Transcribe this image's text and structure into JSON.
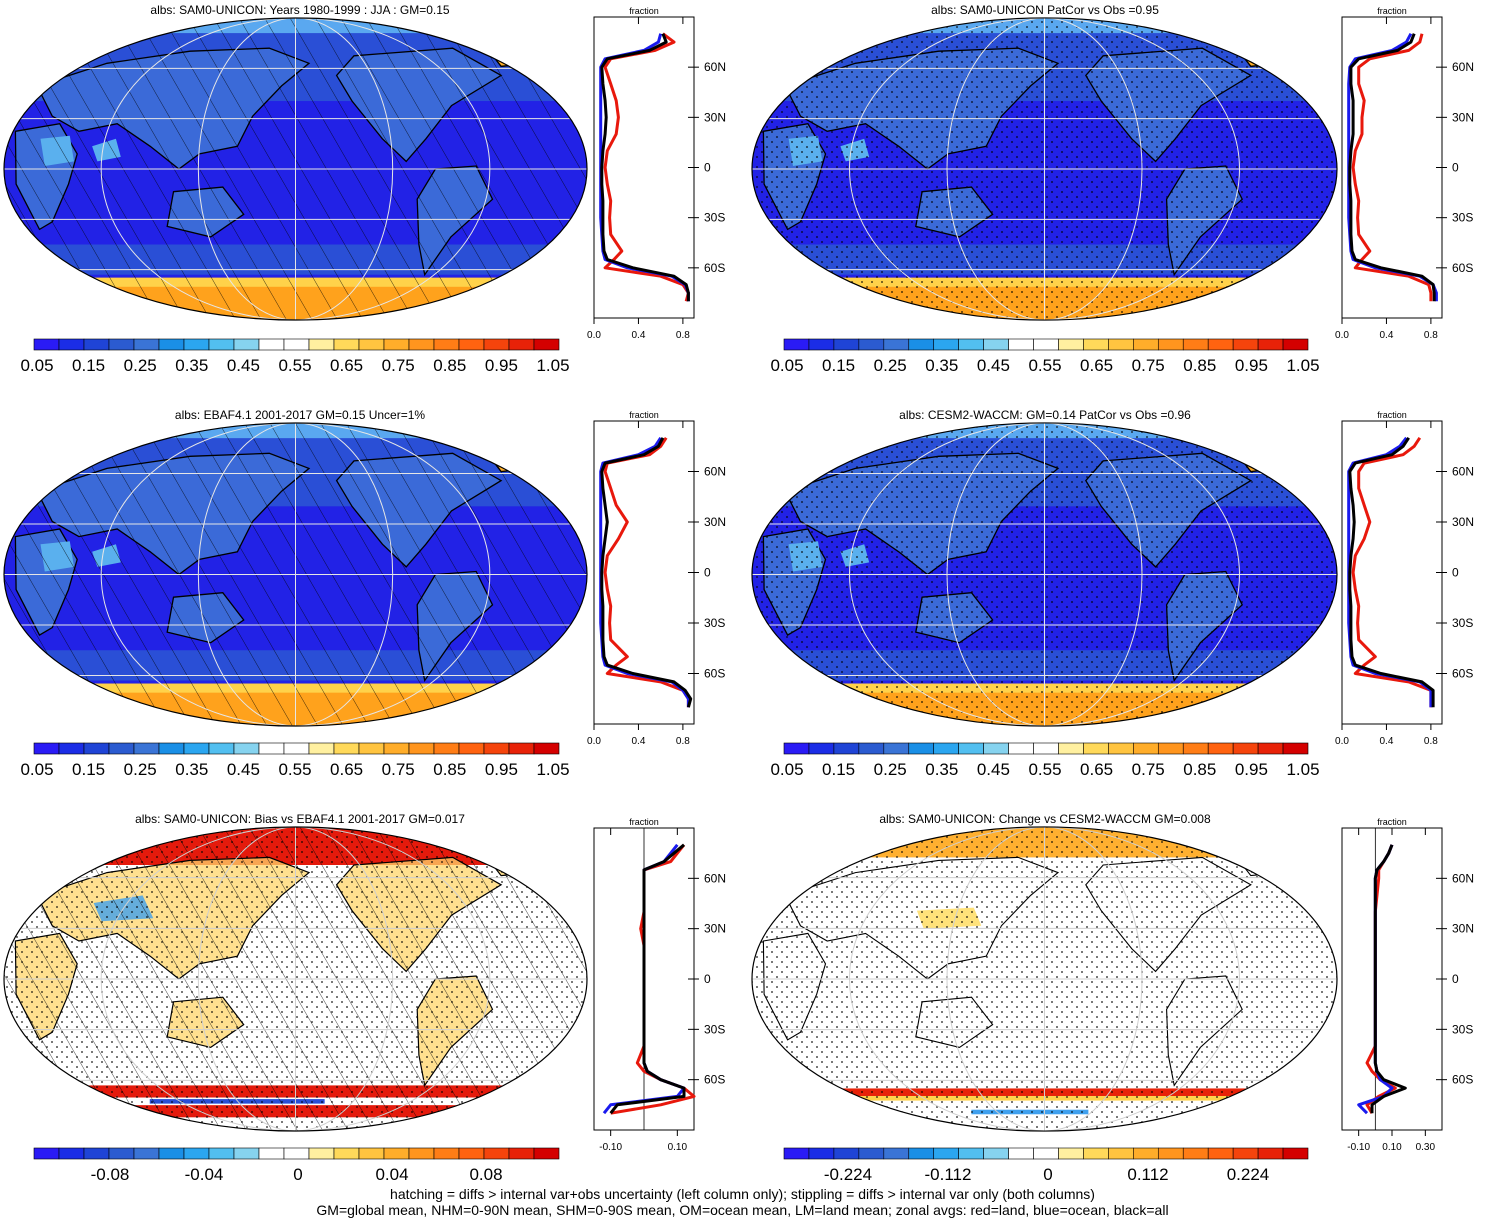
{
  "panels": [
    {
      "title": "albs: SAM0-UNICON: Years 1980-1999 : JJA : GM=0.15",
      "kind": "mean",
      "hatch": true,
      "stipple": false
    },
    {
      "title": "albs: SAM0-UNICON PatCor vs Obs =0.95",
      "kind": "mean",
      "hatch": false,
      "stipple": true
    },
    {
      "title": "albs: EBAF4.1 2001-2017 GM=0.15 Uncer=1%",
      "kind": "mean",
      "hatch": true,
      "stipple": false
    },
    {
      "title": "albs: CESM2-WACCM: GM=0.14 PatCor vs Obs =0.96",
      "kind": "mean",
      "hatch": false,
      "stipple": true
    },
    {
      "title": "albs: SAM0-UNICON: Bias vs EBAF4.1 2001-2017 GM=0.017",
      "kind": "bias",
      "hatch": true,
      "stipple": true
    },
    {
      "title": "albs: SAM0-UNICON: Change vs CESM2-WACCM GM=0.008",
      "kind": "change",
      "hatch": false,
      "stipple": true
    }
  ],
  "colorbars": {
    "mean_labels": [
      "0.05",
      "0.15",
      "0.25",
      "0.35",
      "0.45",
      "0.55",
      "0.65",
      "0.75",
      "0.85",
      "0.95",
      "1.05"
    ],
    "bias_labels": [
      "-0.08",
      "-0.04",
      "0",
      "0.04",
      "0.08"
    ],
    "change_labels": [
      "-0.224",
      "-0.112",
      "0",
      "0.112",
      "0.224"
    ],
    "mean_colors": [
      "#2a1bf5",
      "#1b2de6",
      "#1f44d6",
      "#2b5bd0",
      "#3a74d6",
      "#1a8fe6",
      "#2ba6f0",
      "#52bff0",
      "#86d3ef",
      "#ffffff",
      "#ffffff",
      "#fff0a0",
      "#ffd95a",
      "#ffc440",
      "#ffad2a",
      "#ff951e",
      "#ff7d16",
      "#ff6310",
      "#f5440c",
      "#e82208",
      "#d40000"
    ],
    "diff_colors": [
      "#2a1bf5",
      "#1b2de6",
      "#1f44d6",
      "#2b5bd0",
      "#3a74d6",
      "#1a8fe6",
      "#2ba6f0",
      "#52bff0",
      "#86d3ef",
      "#ffffff",
      "#ffffff",
      "#fff0a0",
      "#ffd95a",
      "#ffc440",
      "#ffad2a",
      "#ff951e",
      "#ff7d16",
      "#ff6310",
      "#f5440c",
      "#e82208",
      "#d40000"
    ]
  },
  "zonal_axis": {
    "label": "fraction",
    "lat_labels": [
      "60N",
      "30N",
      "0",
      "30S",
      "60S"
    ],
    "mean_ticks": [
      "0.0",
      "0.4",
      "0.8"
    ],
    "bias_ticks": [
      "-0.10",
      "0.10"
    ],
    "change_ticks": [
      "-0.10",
      "0.10",
      "0.30"
    ]
  },
  "colors": {
    "land": "#e8180c",
    "ocean": "#1a1aee",
    "all": "#000000",
    "grid": "#e0e0e0"
  },
  "chart_data": [
    {
      "type": "line",
      "title": "albs: SAM0-UNICON: Years 1980-1999 : JJA : GM=0.15",
      "xlabel": "fraction",
      "xlim": [
        0,
        0.9
      ],
      "ylim": [
        -90,
        90
      ],
      "lat": [
        80,
        75,
        70,
        65,
        60,
        50,
        40,
        30,
        20,
        10,
        0,
        -10,
        -20,
        -30,
        -40,
        -50,
        -55,
        -60,
        -65,
        -70,
        -75,
        -80
      ],
      "series": [
        {
          "name": "red=land",
          "values": [
            0.62,
            0.72,
            0.55,
            0.15,
            0.1,
            0.15,
            0.2,
            0.22,
            0.2,
            0.12,
            0.1,
            0.12,
            0.15,
            0.14,
            0.15,
            0.25,
            0.18,
            0.1,
            0.6,
            0.8,
            0.85,
            0.83
          ]
        },
        {
          "name": "blue=ocean",
          "values": [
            0.6,
            0.58,
            0.45,
            0.1,
            0.06,
            0.06,
            0.06,
            0.06,
            0.06,
            0.06,
            0.06,
            0.06,
            0.06,
            0.06,
            0.07,
            0.08,
            0.1,
            0.3,
            0.7,
            0.82,
            0.85,
            0.85
          ]
        },
        {
          "name": "black=all",
          "values": [
            0.62,
            0.65,
            0.5,
            0.12,
            0.07,
            0.08,
            0.1,
            0.11,
            0.1,
            0.08,
            0.07,
            0.07,
            0.08,
            0.08,
            0.08,
            0.09,
            0.12,
            0.35,
            0.72,
            0.83,
            0.85,
            0.85
          ]
        }
      ]
    },
    {
      "type": "line",
      "title": "albs: SAM0-UNICON PatCor vs Obs =0.95",
      "xlabel": "fraction",
      "xlim": [
        0,
        0.9
      ],
      "ylim": [
        -90,
        90
      ],
      "lat": [
        80,
        75,
        70,
        65,
        60,
        50,
        40,
        30,
        20,
        10,
        0,
        -10,
        -20,
        -30,
        -40,
        -50,
        -55,
        -60,
        -65,
        -70,
        -75,
        -80
      ],
      "series": [
        {
          "name": "red=land",
          "values": [
            0.72,
            0.7,
            0.6,
            0.25,
            0.15,
            0.15,
            0.2,
            0.18,
            0.18,
            0.12,
            0.1,
            0.12,
            0.15,
            0.14,
            0.15,
            0.25,
            0.18,
            0.12,
            0.6,
            0.78,
            0.8,
            0.8
          ]
        },
        {
          "name": "blue=ocean",
          "values": [
            0.62,
            0.58,
            0.45,
            0.12,
            0.07,
            0.06,
            0.06,
            0.06,
            0.06,
            0.06,
            0.06,
            0.06,
            0.06,
            0.06,
            0.07,
            0.08,
            0.1,
            0.3,
            0.7,
            0.82,
            0.85,
            0.85
          ]
        },
        {
          "name": "black=all",
          "values": [
            0.65,
            0.62,
            0.5,
            0.15,
            0.08,
            0.08,
            0.1,
            0.1,
            0.1,
            0.08,
            0.07,
            0.07,
            0.08,
            0.08,
            0.08,
            0.09,
            0.12,
            0.35,
            0.72,
            0.82,
            0.83,
            0.83
          ]
        }
      ]
    },
    {
      "type": "line",
      "title": "albs: EBAF4.1 2001-2017 GM=0.15 Uncer=1%",
      "xlabel": "fraction",
      "xlim": [
        0,
        0.9
      ],
      "ylim": [
        -90,
        90
      ],
      "lat": [
        80,
        75,
        70,
        65,
        60,
        50,
        40,
        30,
        20,
        10,
        0,
        -10,
        -20,
        -30,
        -40,
        -50,
        -55,
        -60,
        -65,
        -70,
        -75,
        -80
      ],
      "series": [
        {
          "name": "red=land",
          "values": [
            0.65,
            0.6,
            0.5,
            0.12,
            0.1,
            0.15,
            0.2,
            0.3,
            0.22,
            0.12,
            0.1,
            0.12,
            0.15,
            0.14,
            0.15,
            0.3,
            0.2,
            0.12,
            0.6,
            0.8,
            0.85,
            0.85
          ]
        },
        {
          "name": "blue=ocean",
          "values": [
            0.6,
            0.55,
            0.4,
            0.08,
            0.06,
            0.06,
            0.06,
            0.06,
            0.06,
            0.06,
            0.06,
            0.06,
            0.06,
            0.06,
            0.07,
            0.08,
            0.1,
            0.3,
            0.7,
            0.8,
            0.85,
            0.85
          ]
        },
        {
          "name": "black=all",
          "values": [
            0.62,
            0.58,
            0.45,
            0.1,
            0.07,
            0.08,
            0.1,
            0.12,
            0.1,
            0.08,
            0.07,
            0.07,
            0.08,
            0.08,
            0.08,
            0.09,
            0.12,
            0.35,
            0.72,
            0.82,
            0.87,
            0.85
          ]
        }
      ]
    },
    {
      "type": "line",
      "title": "albs: CESM2-WACCM: GM=0.14 PatCor vs Obs =0.96",
      "xlabel": "fraction",
      "xlim": [
        0,
        0.9
      ],
      "ylim": [
        -90,
        90
      ],
      "lat": [
        80,
        75,
        70,
        65,
        60,
        50,
        40,
        30,
        20,
        10,
        0,
        -10,
        -20,
        -30,
        -40,
        -50,
        -55,
        -60,
        -65,
        -70,
        -75,
        -80
      ],
      "series": [
        {
          "name": "red=land",
          "values": [
            0.7,
            0.65,
            0.55,
            0.2,
            0.15,
            0.15,
            0.2,
            0.25,
            0.2,
            0.12,
            0.1,
            0.12,
            0.15,
            0.14,
            0.15,
            0.3,
            0.2,
            0.12,
            0.6,
            0.8,
            0.8,
            0.8
          ]
        },
        {
          "name": "blue=ocean",
          "values": [
            0.58,
            0.52,
            0.4,
            0.1,
            0.06,
            0.06,
            0.06,
            0.06,
            0.06,
            0.06,
            0.06,
            0.06,
            0.06,
            0.06,
            0.07,
            0.08,
            0.1,
            0.3,
            0.7,
            0.8,
            0.8,
            0.8
          ]
        },
        {
          "name": "black=all",
          "values": [
            0.6,
            0.55,
            0.45,
            0.12,
            0.07,
            0.08,
            0.1,
            0.11,
            0.1,
            0.08,
            0.07,
            0.07,
            0.08,
            0.08,
            0.08,
            0.09,
            0.12,
            0.35,
            0.72,
            0.82,
            0.82,
            0.82
          ]
        }
      ]
    },
    {
      "type": "line",
      "title": "albs: SAM0-UNICON: Bias vs EBAF4.1 2001-2017 GM=0.017",
      "xlabel": "fraction",
      "xlim": [
        -0.15,
        0.15
      ],
      "ylim": [
        -90,
        90
      ],
      "lat": [
        80,
        75,
        70,
        65,
        60,
        50,
        40,
        30,
        20,
        10,
        0,
        -10,
        -20,
        -30,
        -40,
        -50,
        -55,
        -60,
        -65,
        -70,
        -75,
        -80
      ],
      "series": [
        {
          "name": "red=land",
          "values": [
            0.12,
            0.1,
            0.08,
            0.0,
            0.0,
            0.0,
            0.0,
            -0.01,
            0.0,
            0.0,
            0.0,
            0.0,
            0.0,
            0.0,
            0.0,
            -0.02,
            0.0,
            0.05,
            0.12,
            0.15,
            0.05,
            -0.1
          ]
        },
        {
          "name": "blue=ocean",
          "values": [
            0.1,
            0.08,
            0.06,
            0.0,
            0.0,
            0.0,
            0.0,
            0.0,
            0.0,
            0.0,
            0.0,
            0.0,
            0.0,
            0.0,
            0.0,
            0.0,
            0.01,
            0.05,
            0.12,
            0.1,
            -0.1,
            -0.12
          ]
        },
        {
          "name": "black=all",
          "values": [
            0.12,
            0.09,
            0.06,
            0.0,
            0.0,
            0.0,
            0.0,
            0.0,
            0.0,
            0.0,
            0.0,
            0.0,
            0.0,
            0.0,
            0.0,
            0.0,
            0.01,
            0.05,
            0.12,
            0.12,
            -0.08,
            -0.1
          ]
        }
      ]
    },
    {
      "type": "line",
      "title": "albs: SAM0-UNICON: Change vs CESM2-WACCM GM=0.008",
      "xlabel": "fraction",
      "xlim": [
        -0.2,
        0.4
      ],
      "ylim": [
        -90,
        90
      ],
      "lat": [
        80,
        75,
        70,
        65,
        60,
        50,
        40,
        30,
        20,
        10,
        0,
        -10,
        -20,
        -30,
        -40,
        -50,
        -55,
        -60,
        -65,
        -70,
        -75,
        -80
      ],
      "series": [
        {
          "name": "red=land",
          "values": [
            0.1,
            0.08,
            0.05,
            0.02,
            0.02,
            0.01,
            0.0,
            0.0,
            0.0,
            0.0,
            0.0,
            0.0,
            0.0,
            0.0,
            0.0,
            -0.05,
            -0.02,
            0.03,
            0.12,
            0.02,
            -0.05,
            -0.02
          ]
        },
        {
          "name": "blue=ocean",
          "values": [
            0.1,
            0.08,
            0.05,
            0.01,
            0.0,
            0.0,
            0.0,
            0.0,
            0.0,
            0.0,
            0.0,
            0.0,
            0.0,
            0.0,
            0.0,
            0.0,
            0.01,
            0.03,
            0.1,
            0.05,
            -0.1,
            -0.05
          ]
        },
        {
          "name": "black=all",
          "values": [
            0.1,
            0.08,
            0.05,
            0.01,
            0.0,
            0.0,
            0.0,
            0.0,
            0.0,
            0.0,
            0.0,
            0.0,
            0.0,
            0.0,
            0.0,
            0.0,
            0.01,
            0.05,
            0.18,
            0.05,
            -0.02,
            -0.02
          ]
        }
      ]
    }
  ],
  "footer": {
    "line1": "hatching = diffs > internal var+obs uncertainty (left column only); stippling = diffs > internal var only (both columns)",
    "line2": "GM=global mean, NHM=0-90N mean, SHM=0-90S mean, OM=ocean mean, LM=land mean; zonal avgs: red=land, blue=ocean, black=all"
  }
}
